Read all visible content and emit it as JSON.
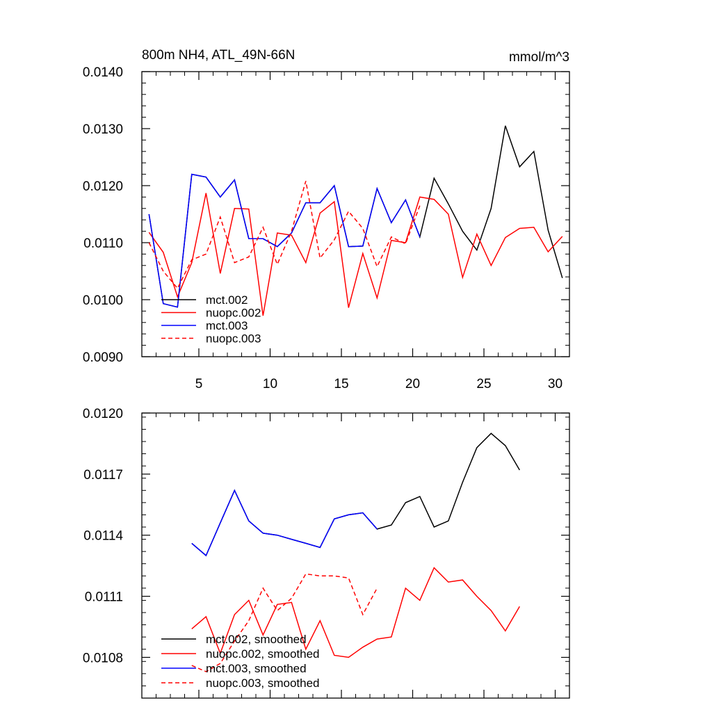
{
  "chart_data": [
    {
      "type": "line",
      "title_left": "800m NH4, ATL_49N-66N",
      "title_right": "mmol/m^3",
      "xlim": [
        1,
        31
      ],
      "ylim": [
        0.009,
        0.014
      ],
      "xticks": [
        5,
        10,
        15,
        20,
        25,
        30
      ],
      "xtick_labels": [
        "5",
        "10",
        "15",
        "20",
        "25",
        "30"
      ],
      "yticks": [
        0.009,
        0.01,
        0.011,
        0.012,
        0.013,
        0.014
      ],
      "ytick_labels": [
        "0.0090",
        "0.0100",
        "0.0110",
        "0.0120",
        "0.0130",
        "0.0140"
      ],
      "series": [
        {
          "name": "mct.002",
          "color": "#000000",
          "dash": "solid",
          "x": [
            1.5,
            2.5,
            3.5,
            4.5,
            5.5,
            6.5,
            7.5,
            8.5,
            9.5,
            10.5,
            11.5,
            12.5,
            13.5,
            14.5,
            15.5,
            16.5,
            17.5,
            18.5,
            19.5,
            20.5,
            21.5,
            22.5,
            23.5,
            24.5,
            25.5,
            26.5,
            27.5,
            28.5,
            29.5,
            30.5
          ],
          "values": [
            0.0115,
            0.00993,
            0.00987,
            0.0122,
            0.01215,
            0.0118,
            0.0121,
            0.01107,
            0.01107,
            0.01093,
            0.01117,
            0.0117,
            0.0117,
            0.012,
            0.01093,
            0.01094,
            0.01195,
            0.01135,
            0.01175,
            0.0111,
            0.01213,
            0.01168,
            0.0112,
            0.01087,
            0.0116,
            0.01305,
            0.01233,
            0.0126,
            0.01122,
            0.01038
          ]
        },
        {
          "name": "nuopc.002",
          "color": "#ff0000",
          "dash": "solid",
          "x": [
            1.5,
            2.5,
            3.5,
            4.5,
            5.5,
            6.5,
            7.5,
            8.5,
            9.5,
            10.5,
            11.5,
            12.5,
            13.5,
            14.5,
            15.5,
            16.5,
            17.5,
            18.5,
            19.5,
            20.5,
            21.5,
            22.5,
            23.5,
            24.5,
            25.5,
            26.5,
            27.5,
            28.5,
            29.5,
            30.5
          ],
          "values": [
            0.01118,
            0.01083,
            0.01005,
            0.01065,
            0.01187,
            0.01046,
            0.0116,
            0.01159,
            0.00972,
            0.01117,
            0.01113,
            0.01065,
            0.01152,
            0.01172,
            0.00986,
            0.01081,
            0.01003,
            0.01104,
            0.011,
            0.0118,
            0.01176,
            0.0115,
            0.01039,
            0.01115,
            0.0106,
            0.01109,
            0.01125,
            0.01127,
            0.01084,
            0.01111
          ]
        },
        {
          "name": "mct.003",
          "color": "#0000ff",
          "dash": "solid",
          "x": [
            1.5,
            2.5,
            3.5,
            4.5,
            5.5,
            6.5,
            7.5,
            8.5,
            9.5,
            10.5,
            11.5,
            12.5,
            13.5,
            14.5,
            15.5,
            16.5,
            17.5,
            18.5,
            19.5,
            20.5
          ],
          "values": [
            0.0115,
            0.00993,
            0.00987,
            0.0122,
            0.01215,
            0.0118,
            0.0121,
            0.01107,
            0.01107,
            0.01093,
            0.01117,
            0.0117,
            0.0117,
            0.012,
            0.01093,
            0.01094,
            0.01195,
            0.01135,
            0.01175,
            0.0111
          ]
        },
        {
          "name": "nuopc.003",
          "color": "#ff0000",
          "dash": "dashed",
          "x": [
            1.5,
            2.5,
            3.5,
            4.5,
            5.5,
            6.5,
            7.5,
            8.5,
            9.5,
            10.5,
            11.5,
            12.5,
            13.5,
            14.5,
            15.5,
            16.5,
            17.5,
            18.5,
            19.5,
            20.5
          ],
          "values": [
            0.011,
            0.0105,
            0.0102,
            0.0107,
            0.0108,
            0.01145,
            0.01065,
            0.01075,
            0.01127,
            0.01062,
            0.0112,
            0.01208,
            0.01073,
            0.01105,
            0.01155,
            0.01125,
            0.01058,
            0.0111,
            0.01098,
            0.01165
          ]
        }
      ]
    },
    {
      "type": "line",
      "xlim": [
        1,
        31
      ],
      "ylim": [
        0.0106,
        0.012
      ],
      "xticks": [
        5,
        10,
        15,
        20,
        25,
        30
      ],
      "yticks": [
        0.0108,
        0.0111,
        0.0114,
        0.0117,
        0.012
      ],
      "ytick_labels": [
        "0.0108",
        "0.0111",
        "0.0114",
        "0.0117",
        "0.0120"
      ],
      "series": [
        {
          "name": "mct.002, smoothed",
          "color": "#000000",
          "dash": "solid",
          "x": [
            4.5,
            5.5,
            6.5,
            7.5,
            8.5,
            9.5,
            10.5,
            11.5,
            12.5,
            13.5,
            14.5,
            15.5,
            16.5,
            17.5,
            18.5,
            19.5,
            20.5,
            21.5,
            22.5,
            23.5,
            24.5,
            25.5,
            26.5,
            27.5
          ],
          "values": [
            0.01136,
            0.0113,
            0.01146,
            0.01162,
            0.01147,
            0.01141,
            0.0114,
            0.01138,
            0.01136,
            0.01134,
            0.01148,
            0.0115,
            0.01151,
            0.01143,
            0.01145,
            0.01156,
            0.01159,
            0.01144,
            0.01147,
            0.01166,
            0.01183,
            0.0119,
            0.01184,
            0.01172
          ]
        },
        {
          "name": "nuopc.002, smoothed",
          "color": "#ff0000",
          "dash": "solid",
          "x": [
            4.5,
            5.5,
            6.5,
            7.5,
            8.5,
            9.5,
            10.5,
            11.5,
            12.5,
            13.5,
            14.5,
            15.5,
            16.5,
            17.5,
            18.5,
            19.5,
            20.5,
            21.5,
            22.5,
            23.5,
            24.5,
            25.5,
            26.5,
            27.5
          ],
          "values": [
            0.01094,
            0.011,
            0.01082,
            0.01101,
            0.01108,
            0.01091,
            0.01106,
            0.01107,
            0.01084,
            0.01098,
            0.01081,
            0.0108,
            0.01085,
            0.01089,
            0.0109,
            0.01114,
            0.01108,
            0.01124,
            0.01117,
            0.01118,
            0.0111,
            0.01103,
            0.01093,
            0.01105
          ]
        },
        {
          "name": "mct.003, smoothed",
          "color": "#0000ff",
          "dash": "solid",
          "x": [
            4.5,
            5.5,
            6.5,
            7.5,
            8.5,
            9.5,
            10.5,
            11.5,
            12.5,
            13.5,
            14.5,
            15.5,
            16.5,
            17.5
          ],
          "values": [
            0.01136,
            0.0113,
            0.01146,
            0.01162,
            0.01147,
            0.01141,
            0.0114,
            0.01138,
            0.01136,
            0.01134,
            0.01148,
            0.0115,
            0.01151,
            0.01143
          ]
        },
        {
          "name": "nuopc.003, smoothed",
          "color": "#ff0000",
          "dash": "dashed",
          "x": [
            4.5,
            5.5,
            6.5,
            7.5,
            8.5,
            9.5,
            10.5,
            11.5,
            12.5,
            13.5,
            14.5,
            15.5,
            16.5,
            17.5
          ],
          "values": [
            0.01076,
            0.01073,
            0.01077,
            0.01088,
            0.01098,
            0.01114,
            0.01103,
            0.01109,
            0.01121,
            0.0112,
            0.0112,
            0.01119,
            0.01101,
            0.01114
          ]
        }
      ]
    }
  ]
}
